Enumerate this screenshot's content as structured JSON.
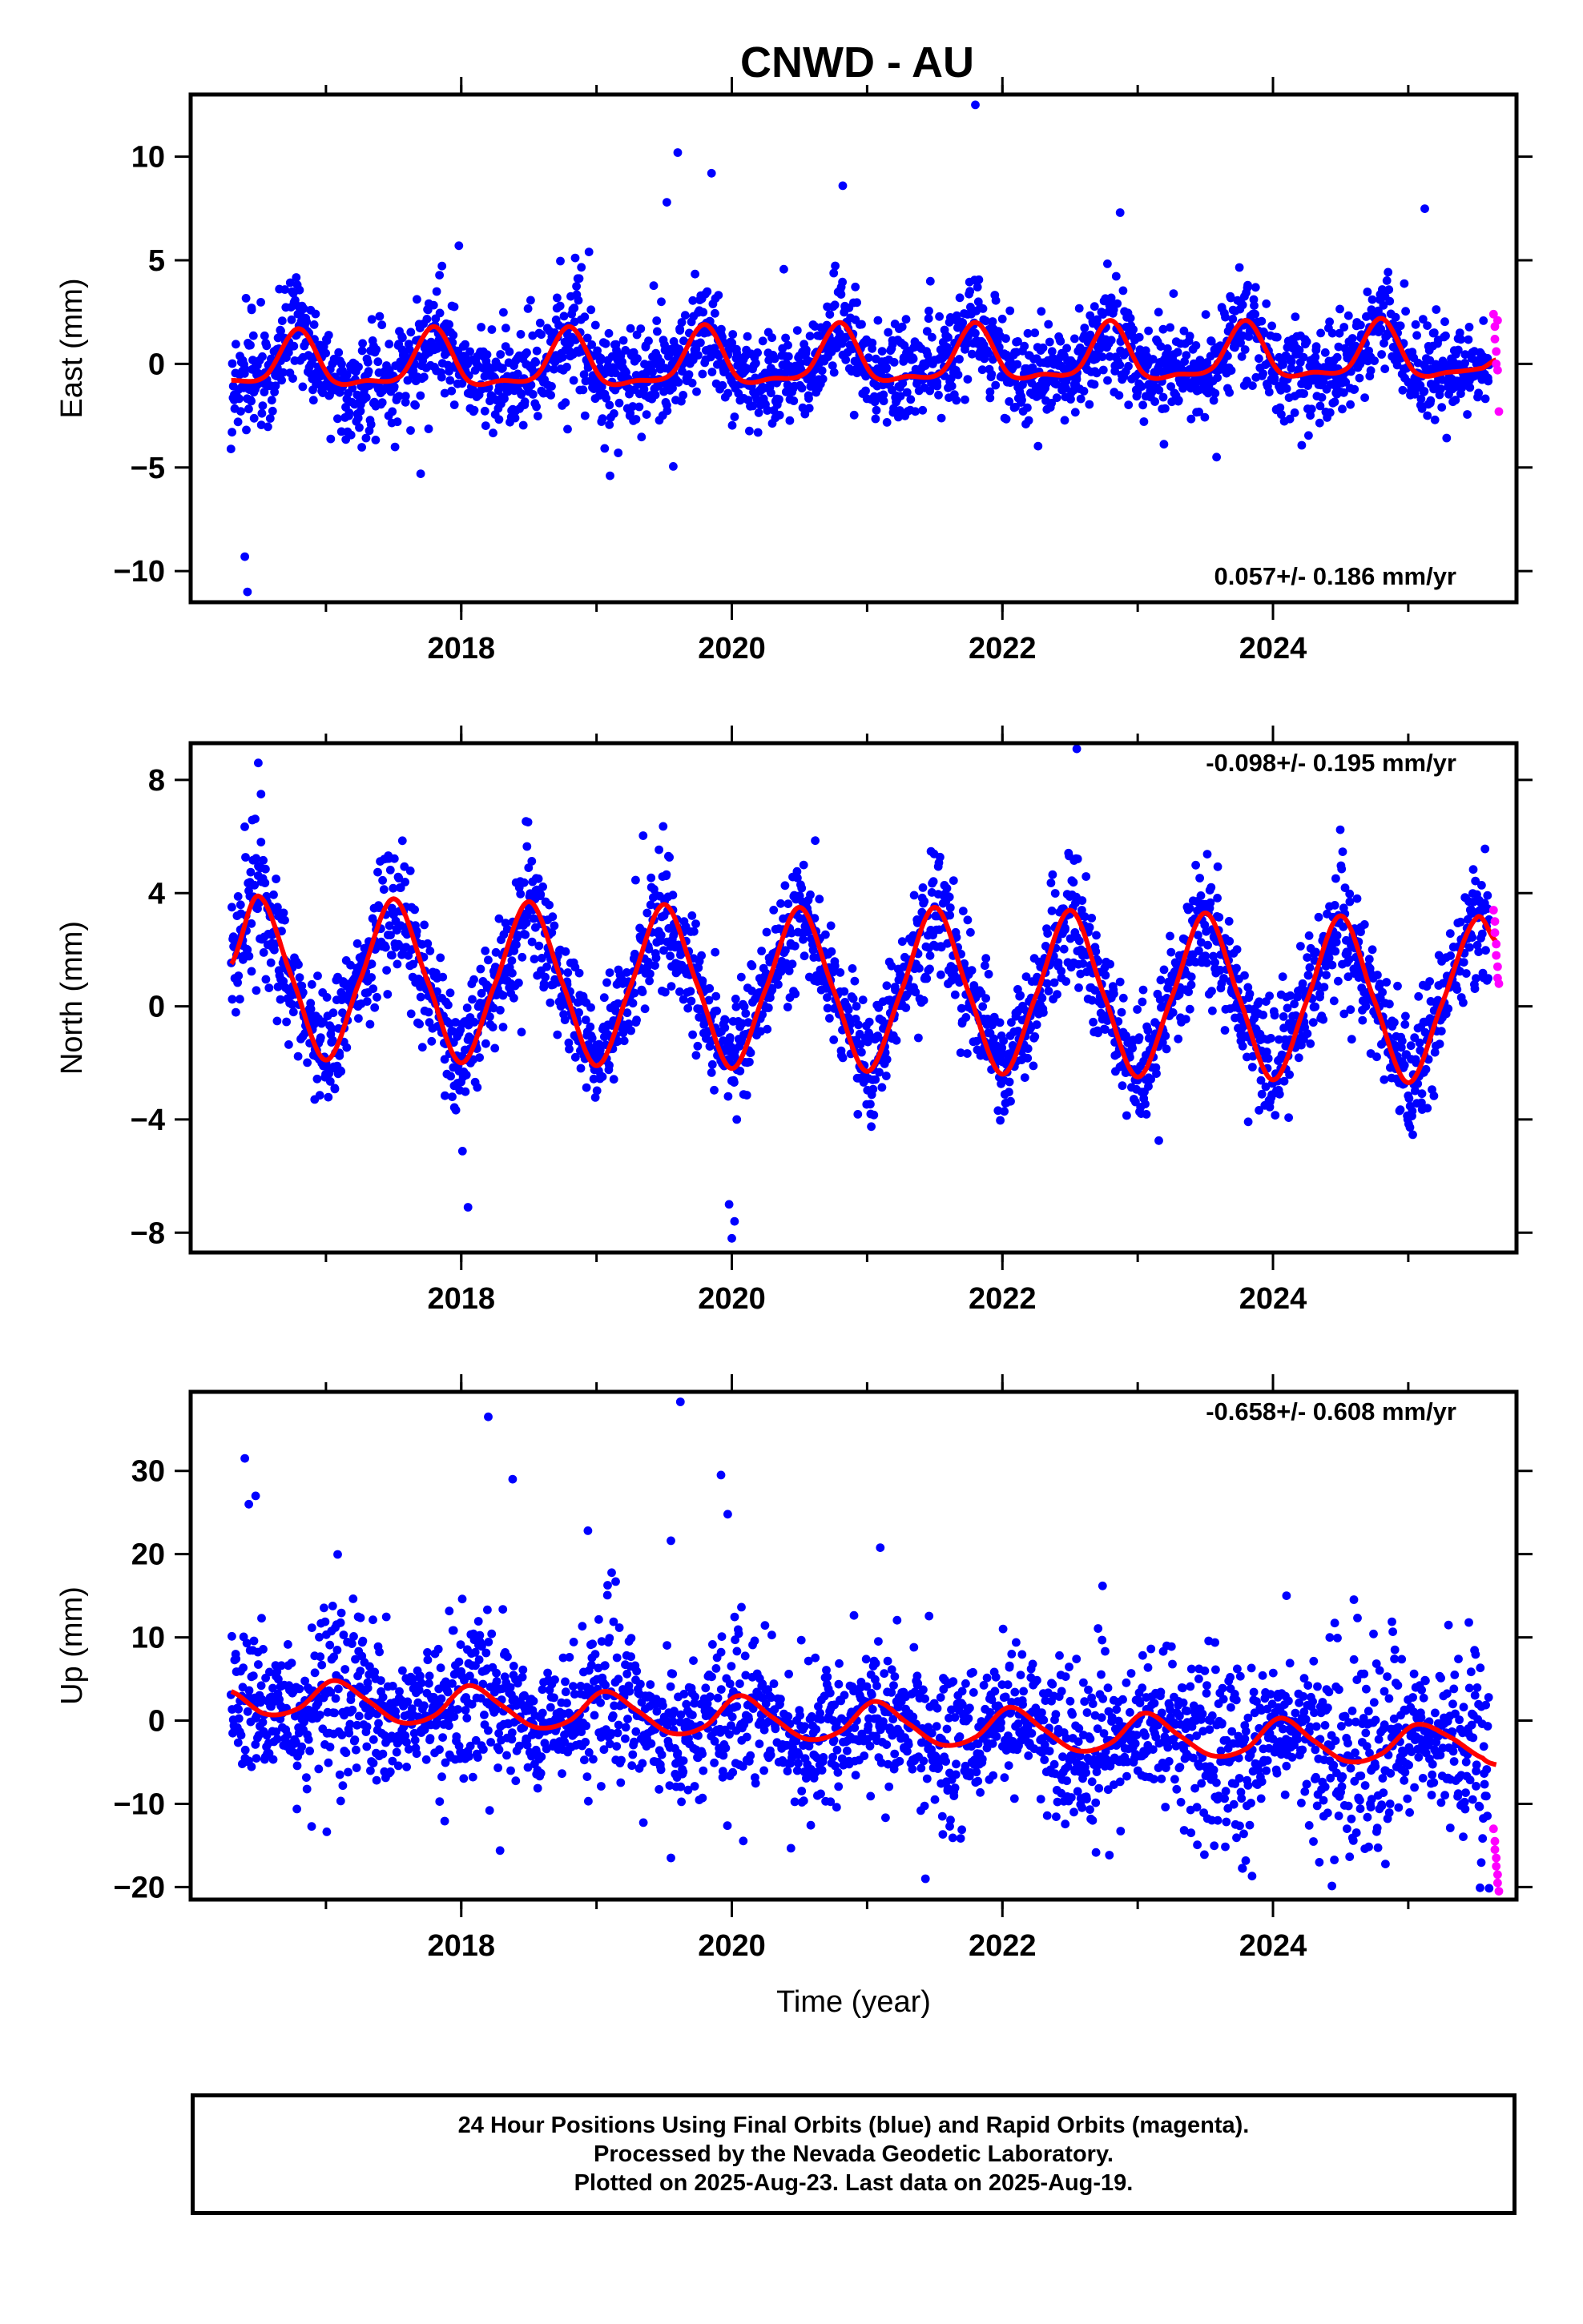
{
  "title": "CNWD - AU",
  "footer": {
    "line1": "24 Hour Positions Using Final Orbits (blue) and Rapid Orbits (magenta).",
    "line2": "Processed by the Nevada Geodetic Laboratory.",
    "line3": "Plotted on 2025-Aug-23. Last data on 2025-Aug-19."
  },
  "colors": {
    "final_orbits": "#0000ff",
    "rapid_orbits": "#ff00ff",
    "model": "#ff0000"
  },
  "chart_data": [
    {
      "type": "scatter",
      "ylabel": "East (mm)",
      "xlabel": "",
      "x_ticks": [
        "2018",
        "2020",
        "2022",
        "2024"
      ],
      "y_ticks": [
        "−10",
        "−5",
        "0",
        "5",
        "10"
      ],
      "xlim": [
        2016.0,
        2025.8
      ],
      "ylim": [
        -11.5,
        13
      ],
      "rate_label": "0.057+/- 0.186 mm/yr",
      "rate_mm_yr": 0.057,
      "rate_sigma": 0.186,
      "model": {
        "x": [
          2016.3,
          2016.55,
          2016.8,
          2017.05,
          2017.3,
          2017.55,
          2017.8,
          2018.05,
          2018.3,
          2018.55,
          2018.8,
          2019.05,
          2019.3,
          2019.55,
          2019.8,
          2020.05,
          2020.3,
          2020.55,
          2020.8,
          2021.05,
          2021.3,
          2021.55,
          2021.8,
          2022.05,
          2022.3,
          2022.55,
          2022.8,
          2023.05,
          2023.3,
          2023.55,
          2023.8,
          2024.05,
          2024.3,
          2024.55,
          2024.8,
          2025.05,
          2025.3,
          2025.55,
          2025.65
        ],
        "y": [
          -0.8,
          -0.6,
          1.7,
          -0.8,
          -0.8,
          -0.6,
          1.8,
          -0.8,
          -0.8,
          -0.6,
          1.8,
          -0.8,
          -0.8,
          -0.5,
          1.9,
          -0.7,
          -0.7,
          -0.4,
          2.0,
          -0.6,
          -0.6,
          -0.4,
          2.0,
          -0.5,
          -0.5,
          -0.3,
          2.1,
          -0.5,
          -0.5,
          -0.2,
          2.1,
          -0.4,
          -0.4,
          -0.2,
          2.2,
          -0.4,
          -0.4,
          -0.2,
          0.2
        ]
      },
      "rapid_points": {
        "x": [
          2025.63,
          2025.64,
          2025.64,
          2025.65,
          2025.65,
          2025.66,
          2025.66,
          2025.67
        ],
        "y": [
          2.4,
          1.8,
          1.2,
          0.6,
          0.0,
          -0.3,
          2.1,
          -2.3
        ]
      },
      "outliers": {
        "x": [
          2016.4,
          2016.42,
          2016.45,
          2019.6,
          2019.52,
          2019.85,
          2020.82,
          2021.8,
          2022.87,
          2019.1,
          2017.7
        ],
        "y": [
          -9.3,
          -11.0,
          2.7,
          10.2,
          7.8,
          9.2,
          8.6,
          12.5,
          7.3,
          -5.4,
          -5.3
        ]
      },
      "scatter_spread_mm": 1.4,
      "seasonal_scatter_boost": 0.7
    },
    {
      "type": "scatter",
      "ylabel": "North (mm)",
      "xlabel": "",
      "x_ticks": [
        "2018",
        "2020",
        "2022",
        "2024"
      ],
      "y_ticks": [
        "−8",
        "−4",
        "0",
        "4",
        "8"
      ],
      "xlim": [
        2016.0,
        2025.8
      ],
      "ylim": [
        -8.7,
        9.3
      ],
      "rate_label": "-0.098+/- 0.195 mm/yr",
      "rate_mm_yr": -0.098,
      "rate_sigma": 0.195,
      "model": {
        "x": [
          2016.3,
          2016.5,
          2016.75,
          2017.0,
          2017.25,
          2017.5,
          2017.75,
          2018.0,
          2018.25,
          2018.5,
          2018.75,
          2019.0,
          2019.25,
          2019.5,
          2019.75,
          2020.0,
          2020.25,
          2020.5,
          2020.75,
          2021.0,
          2021.25,
          2021.5,
          2021.75,
          2022.0,
          2022.25,
          2022.5,
          2022.75,
          2023.0,
          2023.25,
          2023.5,
          2023.75,
          2024.0,
          2024.25,
          2024.5,
          2024.75,
          2025.0,
          2025.25,
          2025.5,
          2025.65
        ],
        "y": [
          1.5,
          3.9,
          1.0,
          -1.9,
          0.9,
          3.8,
          0.9,
          -2.0,
          0.8,
          3.7,
          0.8,
          -2.1,
          0.7,
          3.6,
          0.7,
          -2.2,
          0.6,
          3.5,
          0.6,
          -2.3,
          0.5,
          3.5,
          0.5,
          -2.4,
          0.4,
          3.4,
          0.4,
          -2.5,
          0.3,
          3.3,
          0.3,
          -2.6,
          0.2,
          3.2,
          0.2,
          -2.7,
          0.1,
          3.1,
          2.3
        ]
      },
      "rapid_points": {
        "x": [
          2025.63,
          2025.64,
          2025.64,
          2025.65,
          2025.65,
          2025.66,
          2025.66,
          2025.67
        ],
        "y": [
          3.4,
          3.0,
          2.6,
          2.2,
          1.8,
          1.4,
          1.0,
          0.8
        ]
      },
      "outliers": {
        "x": [
          2016.5,
          2016.52,
          2020.0,
          2020.02,
          2022.55,
          2019.98,
          2018.05
        ],
        "y": [
          8.6,
          7.5,
          -8.2,
          -7.6,
          9.1,
          -7.0,
          -7.1
        ]
      },
      "scatter_spread_mm": 1.1,
      "seasonal_scatter_boost": 0.6
    },
    {
      "type": "scatter",
      "ylabel": "Up (mm)",
      "xlabel": "Time (year)",
      "x_ticks": [
        "2018",
        "2020",
        "2022",
        "2024"
      ],
      "y_ticks": [
        "−20",
        "−10",
        "0",
        "10",
        "20",
        "30"
      ],
      "xlim": [
        2016.0,
        2025.8
      ],
      "ylim": [
        -21.5,
        39.5
      ],
      "rate_label": "-0.658+/- 0.608 mm/yr",
      "rate_mm_yr": -0.658,
      "rate_sigma": 0.608,
      "model": {
        "x": [
          2016.3,
          2016.55,
          2016.8,
          2017.05,
          2017.3,
          2017.55,
          2017.8,
          2018.05,
          2018.3,
          2018.55,
          2018.8,
          2019.05,
          2019.3,
          2019.55,
          2019.8,
          2020.05,
          2020.3,
          2020.55,
          2020.8,
          2021.05,
          2021.3,
          2021.55,
          2021.8,
          2022.05,
          2022.3,
          2022.55,
          2022.8,
          2023.05,
          2023.3,
          2023.55,
          2023.8,
          2024.05,
          2024.3,
          2024.55,
          2024.8,
          2025.05,
          2025.3,
          2025.55,
          2025.65
        ],
        "y": [
          3.5,
          0.8,
          1.5,
          4.8,
          2.5,
          -0.2,
          0.6,
          4.2,
          1.8,
          -0.8,
          0.0,
          3.5,
          1.2,
          -1.5,
          -0.7,
          3.0,
          0.4,
          -2.2,
          -1.3,
          2.3,
          -0.3,
          -2.9,
          -2.0,
          1.6,
          -1.0,
          -3.6,
          -2.7,
          0.9,
          -1.7,
          -4.2,
          -3.4,
          0.3,
          -2.4,
          -4.9,
          -4.0,
          -0.5,
          -1.9,
          -4.5,
          -5.3
        ]
      },
      "rapid_points": {
        "x": [
          2025.63,
          2025.64,
          2025.64,
          2025.65,
          2025.65,
          2025.66,
          2025.66,
          2025.67
        ],
        "y": [
          -13.0,
          -14.5,
          -15.5,
          -16.5,
          -17.5,
          -18.5,
          -19.5,
          -20.5
        ]
      },
      "outliers": {
        "x": [
          2016.4,
          2016.43,
          2016.48,
          2018.2,
          2018.38,
          2019.62,
          2019.92,
          2019.97,
          2019.55,
          2024.1
        ],
        "y": [
          31.5,
          26.0,
          27.0,
          36.5,
          29.0,
          38.3,
          29.5,
          24.8,
          -16.5,
          15.0
        ]
      },
      "scatter_spread_mm": 4.2,
      "seasonal_scatter_boost": 1.0
    }
  ]
}
